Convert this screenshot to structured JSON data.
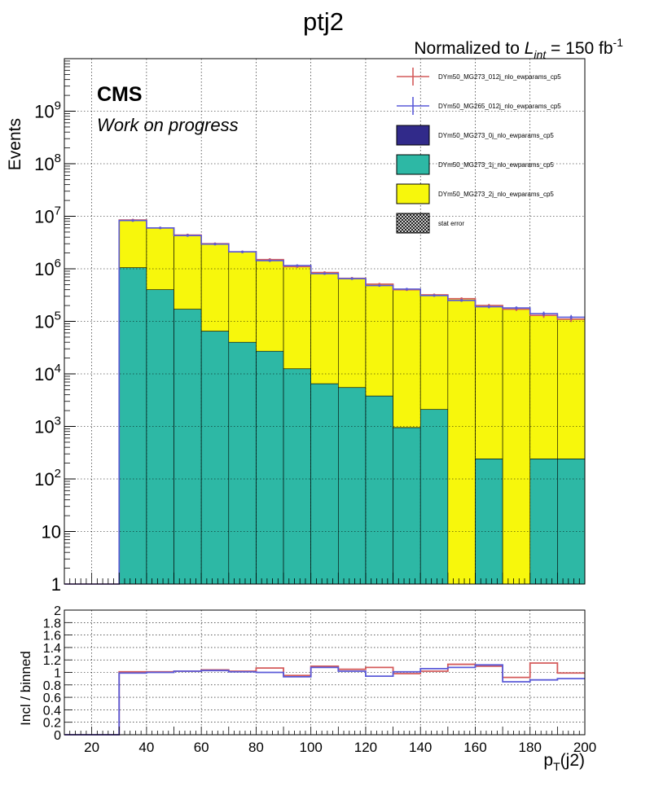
{
  "title": "ptj2",
  "lumi": {
    "prefix": "Normalized to ",
    "L": "L",
    "int": "int",
    "eq": " = 150 fb",
    "exp": "-1"
  },
  "cms_label": "CMS",
  "cms_sublabel": "Work on progress",
  "colors": {
    "inclusive": "#d45a5a",
    "binned": "#5a5ad8",
    "zero_jet": "#312a8a",
    "one_jet": "#2db8a5",
    "two_jet": "#f7f70c",
    "frame": "#000000",
    "grid": "#000000"
  },
  "chart_data": [
    {
      "type": "bar",
      "stacked": true,
      "log_y": true,
      "xlabel": "p_T(j2)",
      "ylabel": "Events",
      "xlim": [
        10,
        200
      ],
      "ylim": [
        1,
        10000000000.0
      ],
      "grid": true,
      "legend_position": "top-right",
      "bin_edges": [
        10,
        20,
        30,
        40,
        50,
        60,
        70,
        80,
        90,
        100,
        110,
        120,
        130,
        140,
        150,
        160,
        170,
        180,
        190,
        200
      ],
      "y_tick_labels": [
        "1",
        "10",
        "10^2",
        "10^3",
        "10^4",
        "10^5",
        "10^6",
        "10^7",
        "10^8",
        "10^9"
      ],
      "series": [
        {
          "name": "DYm50_MG273_0j_nlo_ewparams_cp5",
          "role": "stack",
          "color_key": "zero_jet",
          "values": [
            1,
            1,
            1,
            1,
            1,
            1,
            1,
            1,
            1,
            1,
            1,
            1,
            1,
            1,
            1,
            1,
            1,
            1,
            1
          ]
        },
        {
          "name": "DYm50_MG273_1j_nlo_ewparams_cp5",
          "role": "stack",
          "color_key": "one_jet",
          "values": [
            0,
            0,
            1050000,
            400000,
            170000,
            65000,
            40000,
            27000,
            12500,
            6500,
            5500,
            3800,
            950,
            2100,
            0,
            240,
            0,
            240,
            240
          ]
        },
        {
          "name": "DYm50_MG273_2j_nlo_ewparams_cp5",
          "role": "stack",
          "color_key": "two_jet",
          "values": [
            0,
            0,
            7450000,
            5600000,
            4230000,
            2935000,
            2060000,
            1473000,
            1087500,
            843500,
            654500,
            506200,
            399050,
            317900,
            270000,
            199760,
            170000,
            129760,
            109760
          ]
        },
        {
          "name": "stat error",
          "role": "band",
          "color_key": "frame",
          "values": []
        },
        {
          "name": "DYm50_MG273_012j_nlo_ewparams_cp5",
          "role": "points",
          "color_key": "inclusive",
          "values": [
            1,
            1,
            8500000,
            6000000,
            4400000,
            3000000,
            2100000,
            1500000,
            1100000,
            850000,
            660000,
            510000,
            400000,
            320000,
            270000,
            200000,
            170000,
            130000,
            110000
          ],
          "err": [
            0,
            0,
            250000,
            180000,
            130000,
            90000,
            60000,
            45000,
            35000,
            27000,
            22000,
            20000,
            17000,
            16000,
            15000,
            14000,
            13000,
            14000,
            13000
          ]
        },
        {
          "name": "DYm50_MG265_012j_nlo_ewparams_cp5",
          "role": "points",
          "color_key": "binned",
          "values": [
            1,
            1,
            8300000,
            6000000,
            4300000,
            2950000,
            2100000,
            1430000,
            1150000,
            810000,
            650000,
            480000,
            410000,
            310000,
            250000,
            190000,
            180000,
            140000,
            120000
          ],
          "err": [
            0,
            0,
            200000,
            150000,
            110000,
            80000,
            55000,
            40000,
            30000,
            25000,
            20000,
            18000,
            16000,
            15000,
            14000,
            13000,
            12000,
            13000,
            12000
          ]
        }
      ]
    },
    {
      "type": "line",
      "step": true,
      "xlabel": "p_T(j2)",
      "ylabel": "Incl / binned",
      "xlim": [
        10,
        200
      ],
      "ylim": [
        0,
        2
      ],
      "grid": true,
      "bin_edges": [
        10,
        20,
        30,
        40,
        50,
        60,
        70,
        80,
        90,
        100,
        110,
        120,
        130,
        140,
        150,
        160,
        170,
        180,
        190,
        200
      ],
      "x_tick_labels": [
        "20",
        "40",
        "60",
        "80",
        "100",
        "120",
        "140",
        "160",
        "180",
        "200"
      ],
      "y_tick_labels": [
        "0",
        "0.2",
        "0.4",
        "0.6",
        "0.8",
        "1",
        "1.2",
        "1.4",
        "1.6",
        "1.8",
        "2"
      ],
      "series": [
        {
          "name": "DYm50_MG273_012j_nlo_ewparams_cp5",
          "color_key": "inclusive",
          "values": [
            0,
            0,
            1.01,
            1.01,
            1.02,
            1.04,
            1.02,
            1.07,
            0.95,
            1.1,
            1.05,
            1.08,
            0.98,
            1.02,
            1.13,
            1.1,
            0.92,
            1.15,
            0.99
          ]
        },
        {
          "name": "DYm50_MG265_012j_nlo_ewparams_cp5",
          "color_key": "binned",
          "values": [
            0,
            0,
            0.99,
            1.0,
            1.02,
            1.03,
            1.01,
            1.0,
            0.93,
            1.08,
            1.02,
            0.94,
            1.01,
            1.06,
            1.08,
            1.12,
            0.85,
            0.88,
            0.9
          ]
        }
      ]
    }
  ]
}
